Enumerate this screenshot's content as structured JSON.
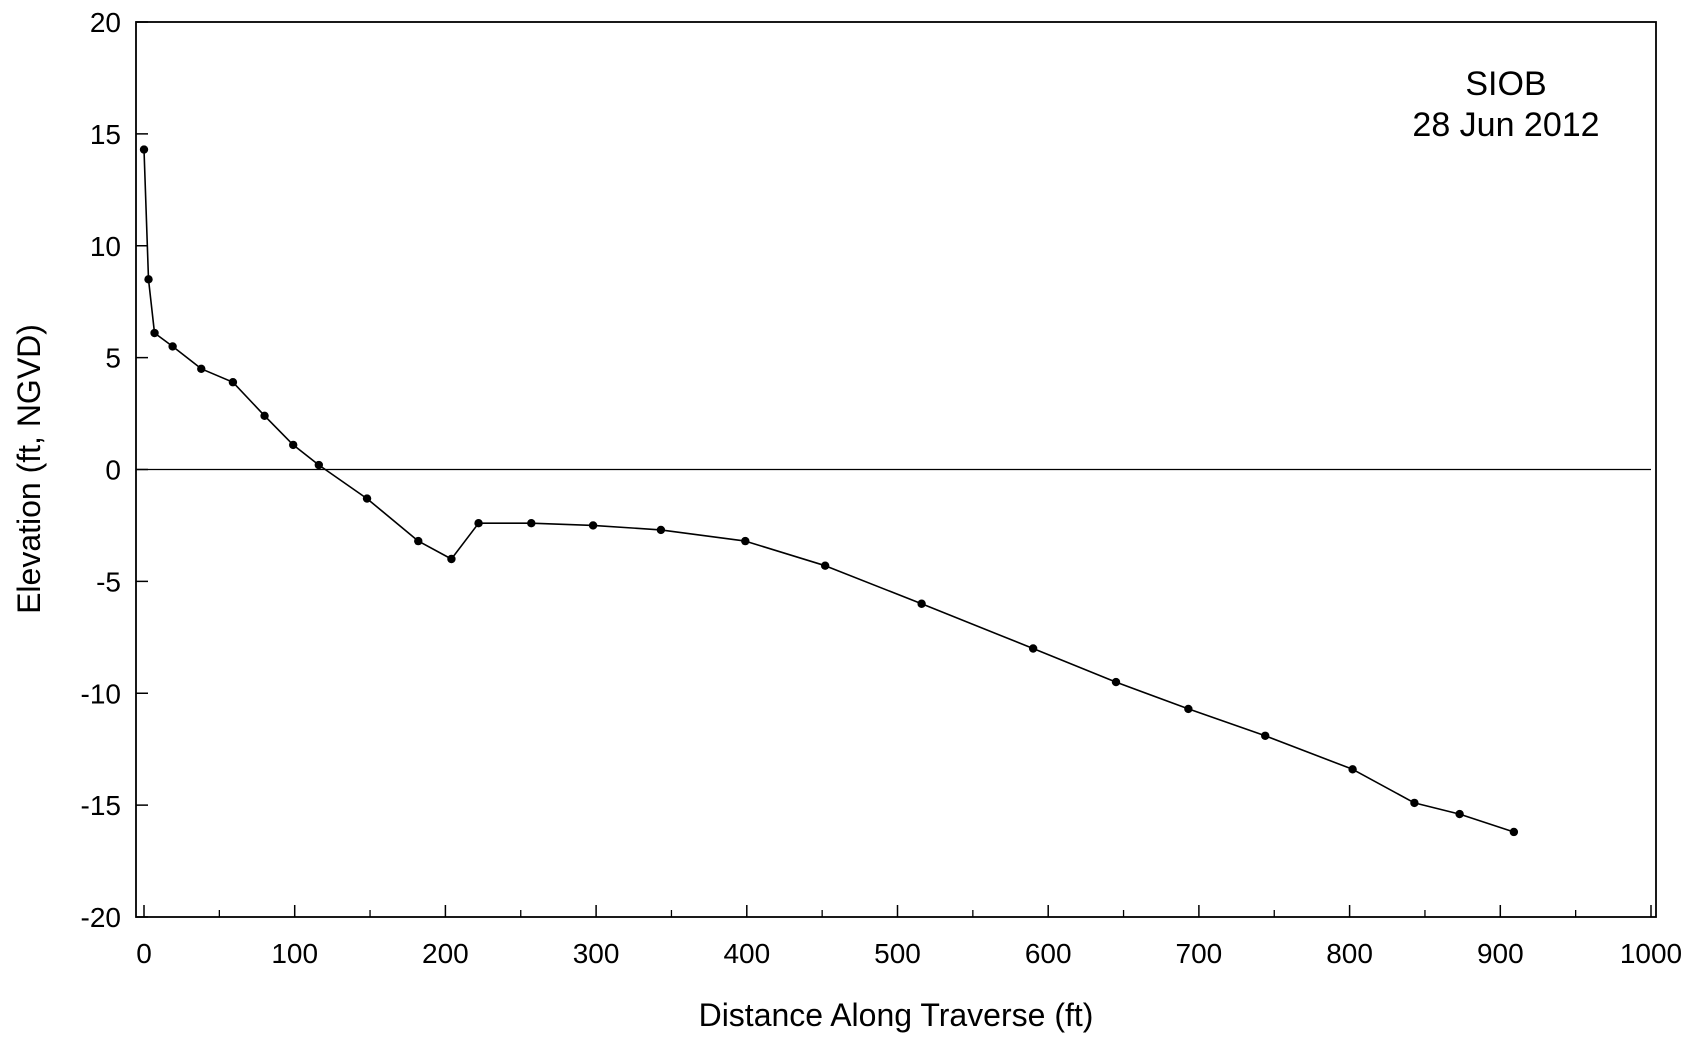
{
  "chart_data": {
    "type": "line",
    "title": "",
    "annotation": [
      "SIOB",
      "28 Jun 2012"
    ],
    "xlabel": "Distance Along Traverse (ft)",
    "ylabel": "Elevation (ft, NGVD)",
    "xlim": [
      0,
      1000
    ],
    "ylim": [
      -20,
      20
    ],
    "xticks": [
      0,
      100,
      200,
      300,
      400,
      500,
      600,
      700,
      800,
      900,
      1000
    ],
    "xtick_labels": [
      "0",
      "100",
      "200",
      "300",
      "400",
      "500",
      "600",
      "700",
      "800",
      "900",
      "1000"
    ],
    "xminor": [
      50,
      150,
      250,
      350,
      450,
      550,
      650,
      750,
      850,
      950
    ],
    "yticks": [
      20,
      15,
      10,
      5,
      0,
      -5,
      -10,
      -15,
      -20
    ],
    "ytick_labels": [
      "20",
      "15",
      "10",
      "5",
      "0",
      "-5",
      "-10",
      "-15",
      "-20"
    ],
    "reference_line_y": 0,
    "grid": false,
    "legend": "none",
    "colors": {
      "line": "#000000",
      "marker": "#000000",
      "axis": "#000000",
      "background": "#ffffff"
    },
    "series": [
      {
        "x": [
          0,
          3,
          7,
          19,
          38,
          59,
          80,
          99,
          116,
          148,
          182,
          204,
          222,
          257,
          298,
          343,
          399,
          452,
          516,
          590,
          645,
          693,
          744,
          802,
          843,
          873,
          909
        ],
        "y": [
          14.3,
          8.5,
          6.1,
          5.5,
          4.5,
          3.9,
          2.4,
          1.1,
          0.2,
          -1.3,
          -3.2,
          -4.0,
          -2.4,
          -2.4,
          -2.5,
          -2.7,
          -3.2,
          -4.3,
          -6.0,
          -8.0,
          -9.5,
          -10.7,
          -11.9,
          -13.4,
          -14.9,
          -15.4,
          -16.2
        ]
      }
    ]
  }
}
